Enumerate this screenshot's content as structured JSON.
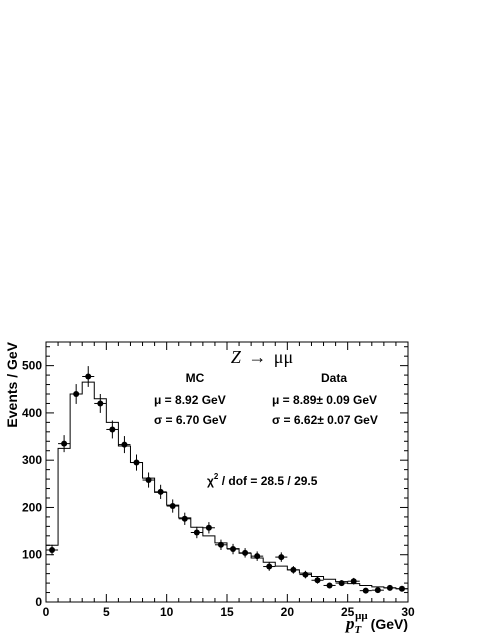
{
  "chart_data": {
    "type": "histogram",
    "title": "Z → μμ",
    "title_parts": {
      "main": "Z",
      "arrow": "→",
      "rest": "μμ"
    },
    "xlabel": {
      "symbol": "p",
      "sub": "T",
      "sup": "μμ",
      "unit": "(GeV)"
    },
    "ylabel": "Events / GeV",
    "xlim": [
      0,
      30
    ],
    "ylim": [
      0,
      550
    ],
    "xticks": [
      0,
      5,
      10,
      15,
      20,
      25,
      30
    ],
    "yticks": [
      0,
      100,
      200,
      300,
      400,
      500
    ],
    "bin_edges": [
      0,
      1,
      2,
      3,
      4,
      5,
      6,
      7,
      8,
      9,
      10,
      11,
      12,
      13,
      14,
      15,
      16,
      17,
      18,
      19,
      20,
      21,
      22,
      23,
      24,
      25,
      26,
      27,
      28,
      29,
      30
    ],
    "series": [
      {
        "kind": "step-histogram",
        "values": [
          120,
          325,
          440,
          465,
          430,
          380,
          330,
          295,
          262,
          232,
          205,
          178,
          158,
          140,
          125,
          113,
          103,
          93,
          84,
          76,
          68,
          61,
          54,
          48,
          43,
          39,
          35,
          32,
          30,
          28
        ]
      },
      {
        "kind": "points-with-errors",
        "x": [
          0.5,
          1.5,
          2.5,
          3.5,
          4.5,
          5.5,
          6.5,
          7.5,
          8.5,
          9.5,
          10.5,
          11.5,
          12.5,
          13.5,
          14.5,
          15.5,
          16.5,
          17.5,
          18.5,
          19.5,
          20.5,
          21.5,
          22.5,
          23.5,
          24.5,
          25.5,
          26.5,
          27.5,
          28.5,
          29.5
        ],
        "y": [
          110,
          335,
          440,
          477,
          420,
          365,
          333,
          295,
          258,
          233,
          203,
          176,
          147,
          157,
          121,
          112,
          104,
          97,
          75,
          95,
          68,
          58,
          46,
          35,
          40,
          44,
          24,
          25,
          30,
          28
        ],
        "yerr": [
          11,
          18,
          21,
          22,
          20,
          19,
          18,
          17,
          16,
          15,
          14,
          13,
          12,
          12,
          11,
          11,
          10,
          10,
          9,
          10,
          8,
          8,
          7,
          6,
          6,
          7,
          5,
          5,
          5,
          5
        ]
      }
    ],
    "annotations": {
      "mc_header": "MC",
      "data_header": "Data",
      "mc_mu": "μ = 8.92 GeV",
      "mc_sigma": "σ = 6.70 GeV",
      "data_mu": "μ = 8.89± 0.09 GeV",
      "data_sigma": "σ = 6.62± 0.07 GeV",
      "chi2_main": "χ",
      "chi2_sup": "2",
      "chi2_rest": " / dof = 28.5 / 29.5"
    },
    "grid": false,
    "legend": "none"
  }
}
